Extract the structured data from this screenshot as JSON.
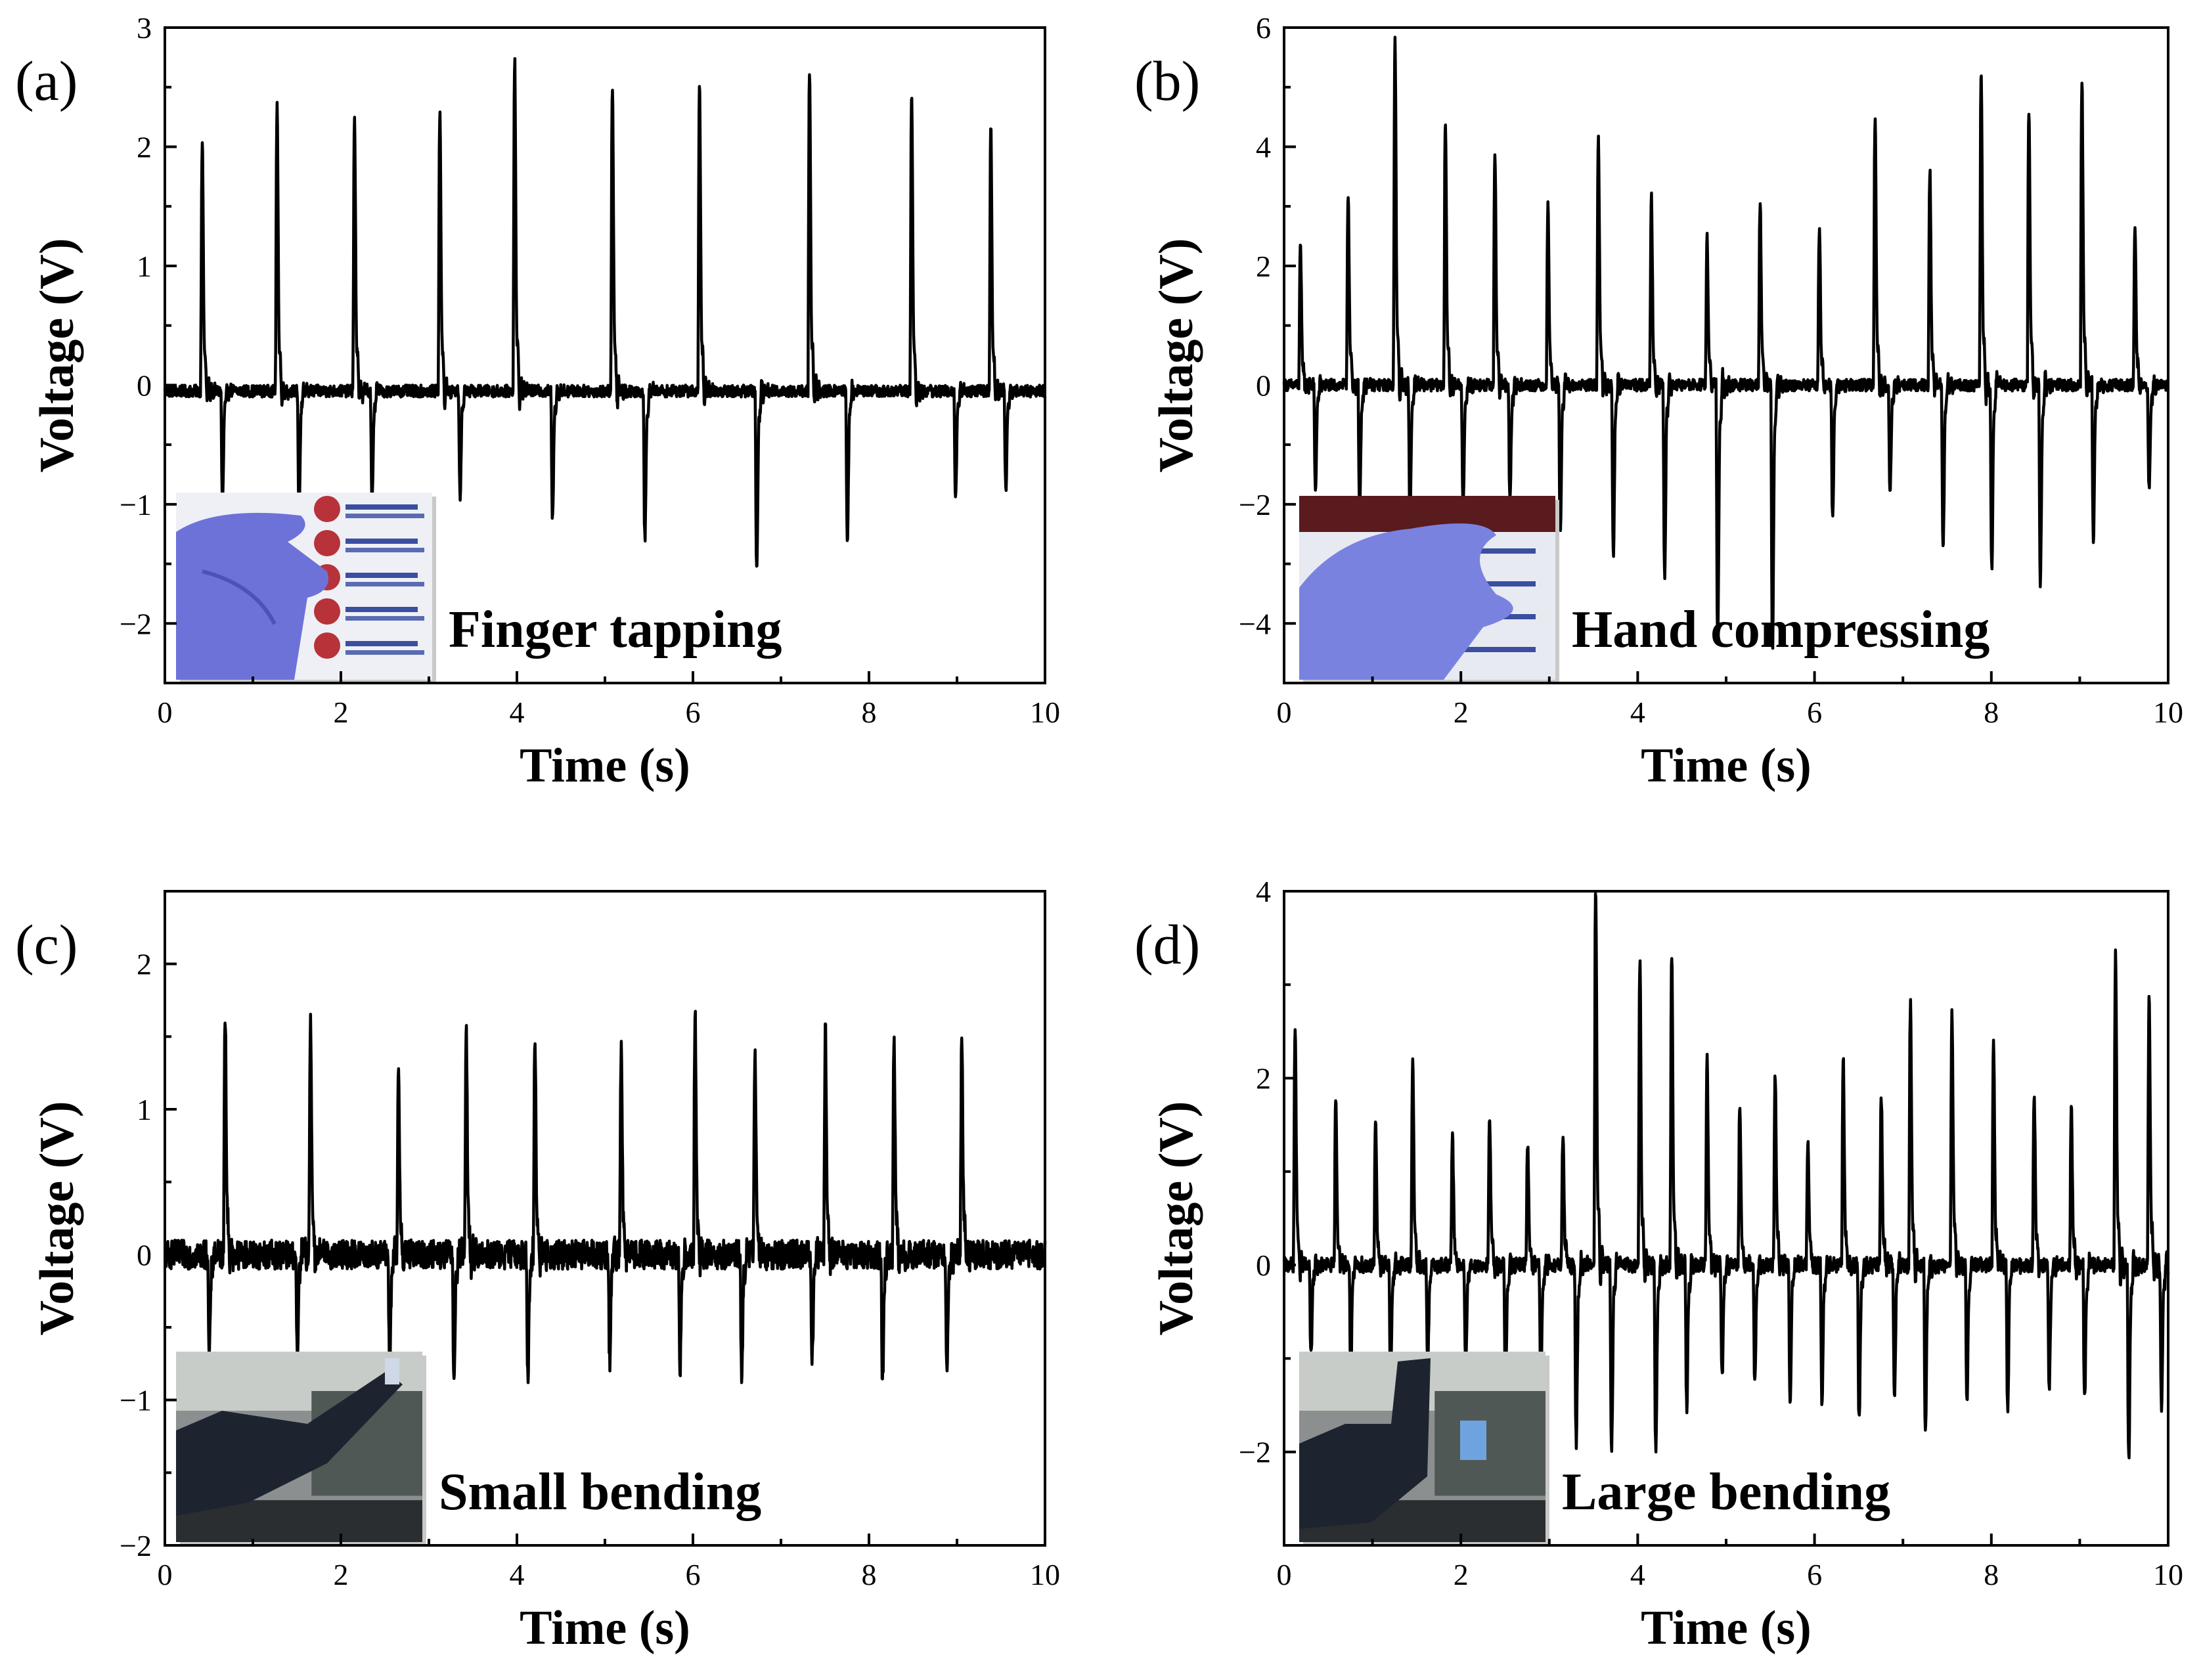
{
  "chart_data": [
    {
      "panel": "(a)",
      "type": "line",
      "xlabel": "Time (s)",
      "ylabel": "Voltage (V)",
      "xlim": [
        0,
        10
      ],
      "ylim": [
        -2.5,
        3
      ],
      "x_ticks": [
        0,
        2,
        4,
        6,
        8,
        10
      ],
      "y_ticks": [
        -2,
        -1,
        0,
        1,
        2,
        3
      ],
      "grid": false,
      "legend": "none",
      "baseline": -0.05,
      "noise": 0.05,
      "annotation": "Finger tapping",
      "inset_photo": "hand-gloved-finger-tapping-photo",
      "peaks": [
        {
          "t": 0.42,
          "v": 1.92
        },
        {
          "t": 0.65,
          "v": -0.85
        },
        {
          "t": 1.27,
          "v": 2.18
        },
        {
          "t": 1.52,
          "v": -0.9
        },
        {
          "t": 2.15,
          "v": 2.08
        },
        {
          "t": 2.35,
          "v": -0.85
        },
        {
          "t": 3.12,
          "v": 2.17
        },
        {
          "t": 3.35,
          "v": -0.8
        },
        {
          "t": 3.97,
          "v": 2.56
        },
        {
          "t": 4.4,
          "v": -0.98
        },
        {
          "t": 5.08,
          "v": 2.32
        },
        {
          "t": 5.45,
          "v": -1.12
        },
        {
          "t": 6.07,
          "v": 2.33
        },
        {
          "t": 6.72,
          "v": -1.38
        },
        {
          "t": 7.32,
          "v": 2.47
        },
        {
          "t": 7.75,
          "v": -1.12
        },
        {
          "t": 8.48,
          "v": 2.25
        },
        {
          "t": 8.98,
          "v": -0.82
        },
        {
          "t": 9.38,
          "v": 2.01
        },
        {
          "t": 9.55,
          "v": -0.75
        }
      ]
    },
    {
      "panel": "(b)",
      "type": "line",
      "xlabel": "Time (s)",
      "ylabel": "Voltage (V)",
      "xlim": [
        0,
        10
      ],
      "ylim": [
        -5,
        6
      ],
      "x_ticks": [
        0,
        2,
        4,
        6,
        8,
        10
      ],
      "y_ticks": [
        -4,
        -2,
        0,
        2,
        4,
        6
      ],
      "grid": false,
      "legend": "none",
      "baseline": 0,
      "noise": 0.1,
      "annotation": "Hand compressing",
      "inset_photo": "hand-compressing-photo",
      "peaks": [
        {
          "t": 0.18,
          "v": 2.1
        },
        {
          "t": 0.35,
          "v": -1.6
        },
        {
          "t": 0.72,
          "v": 2.95
        },
        {
          "t": 0.85,
          "v": -1.9
        },
        {
          "t": 1.25,
          "v": 5.3
        },
        {
          "t": 1.42,
          "v": -2.0
        },
        {
          "t": 1.82,
          "v": 4.0
        },
        {
          "t": 2.02,
          "v": -1.9
        },
        {
          "t": 2.38,
          "v": 3.55
        },
        {
          "t": 2.55,
          "v": -1.8
        },
        {
          "t": 2.98,
          "v": 2.75
        },
        {
          "t": 3.12,
          "v": -2.3
        },
        {
          "t": 3.55,
          "v": 3.75
        },
        {
          "t": 3.72,
          "v": -2.6
        },
        {
          "t": 4.15,
          "v": 2.9
        },
        {
          "t": 4.3,
          "v": -2.9
        },
        {
          "t": 4.78,
          "v": 2.25
        },
        {
          "t": 4.9,
          "v": -4.0
        },
        {
          "t": 5.38,
          "v": 2.8
        },
        {
          "t": 5.52,
          "v": -4.1
        },
        {
          "t": 6.05,
          "v": 2.4
        },
        {
          "t": 6.2,
          "v": -2.0
        },
        {
          "t": 6.68,
          "v": 4.15
        },
        {
          "t": 6.85,
          "v": -1.6
        },
        {
          "t": 7.3,
          "v": 3.3
        },
        {
          "t": 7.45,
          "v": -2.5
        },
        {
          "t": 7.88,
          "v": 4.8
        },
        {
          "t": 8.0,
          "v": -2.8
        },
        {
          "t": 8.42,
          "v": 4.25
        },
        {
          "t": 8.55,
          "v": -3.0
        },
        {
          "t": 9.02,
          "v": 4.7
        },
        {
          "t": 9.15,
          "v": -2.3
        },
        {
          "t": 9.62,
          "v": 2.4
        },
        {
          "t": 9.78,
          "v": -1.6
        }
      ]
    },
    {
      "panel": "(c)",
      "type": "line",
      "xlabel": "Time (s)",
      "ylabel": "Voltage (V)",
      "xlim": [
        0,
        10
      ],
      "ylim": [
        -2,
        2.5
      ],
      "x_ticks": [
        0,
        2,
        4,
        6,
        8,
        10
      ],
      "y_ticks": [
        -2,
        -1,
        0,
        1,
        2
      ],
      "grid": false,
      "legend": "none",
      "baseline": 0,
      "noise": 0.1,
      "annotation": "Small bending",
      "inset_photo": "arm-small-bending-photo",
      "peaks": [
        {
          "t": 0.68,
          "v": 1.55
        },
        {
          "t": 0.5,
          "v": -0.65
        },
        {
          "t": 1.65,
          "v": 1.5
        },
        {
          "t": 1.5,
          "v": -0.65
        },
        {
          "t": 2.65,
          "v": 1.12
        },
        {
          "t": 2.55,
          "v": -0.7
        },
        {
          "t": 3.42,
          "v": 1.4
        },
        {
          "t": 3.28,
          "v": -0.82
        },
        {
          "t": 4.2,
          "v": 1.35
        },
        {
          "t": 4.12,
          "v": -0.8
        },
        {
          "t": 5.18,
          "v": 1.32
        },
        {
          "t": 5.05,
          "v": -0.65
        },
        {
          "t": 6.02,
          "v": 1.5
        },
        {
          "t": 5.85,
          "v": -0.7
        },
        {
          "t": 6.7,
          "v": 1.25
        },
        {
          "t": 6.55,
          "v": -0.78
        },
        {
          "t": 7.5,
          "v": 1.4
        },
        {
          "t": 7.35,
          "v": -0.65
        },
        {
          "t": 8.28,
          "v": 1.38
        },
        {
          "t": 8.15,
          "v": -0.8
        },
        {
          "t": 9.05,
          "v": 1.33
        },
        {
          "t": 8.88,
          "v": -0.75
        }
      ]
    },
    {
      "panel": "(d)",
      "type": "line",
      "xlabel": "Time (s)",
      "ylabel": "Voltage (V)",
      "xlim": [
        0,
        10
      ],
      "ylim": [
        -3,
        4
      ],
      "x_ticks": [
        0,
        2,
        4,
        6,
        8,
        10
      ],
      "y_ticks": [
        -2,
        0,
        2,
        4
      ],
      "grid": false,
      "legend": "none",
      "baseline": 0,
      "noise": 0.08,
      "annotation": "Large bending",
      "inset_photo": "arm-large-bending-photo",
      "peaks": [
        {
          "t": 0.12,
          "v": 2.32
        },
        {
          "t": 0.3,
          "v": -0.9
        },
        {
          "t": 0.58,
          "v": 1.6
        },
        {
          "t": 0.75,
          "v": -1.0
        },
        {
          "t": 1.03,
          "v": 1.35
        },
        {
          "t": 1.2,
          "v": -1.1
        },
        {
          "t": 1.45,
          "v": 2.0
        },
        {
          "t": 1.62,
          "v": -1.0
        },
        {
          "t": 1.9,
          "v": 1.25
        },
        {
          "t": 2.05,
          "v": -1.0
        },
        {
          "t": 2.32,
          "v": 1.42
        },
        {
          "t": 2.5,
          "v": -1.2
        },
        {
          "t": 2.75,
          "v": 1.18
        },
        {
          "t": 2.9,
          "v": -1.2
        },
        {
          "t": 3.15,
          "v": 1.28
        },
        {
          "t": 3.3,
          "v": -1.75
        },
        {
          "t": 3.52,
          "v": 3.68
        },
        {
          "t": 3.7,
          "v": -1.85
        },
        {
          "t": 4.02,
          "v": 2.95
        },
        {
          "t": 4.2,
          "v": -1.85
        },
        {
          "t": 4.38,
          "v": 3.05
        },
        {
          "t": 4.55,
          "v": -1.4
        },
        {
          "t": 4.78,
          "v": 2.0
        },
        {
          "t": 4.95,
          "v": -1.1
        },
        {
          "t": 5.15,
          "v": 1.6
        },
        {
          "t": 5.32,
          "v": -1.1
        },
        {
          "t": 5.55,
          "v": 1.85
        },
        {
          "t": 5.72,
          "v": -1.3
        },
        {
          "t": 5.92,
          "v": 1.18
        },
        {
          "t": 6.08,
          "v": -1.35
        },
        {
          "t": 6.32,
          "v": 2.0
        },
        {
          "t": 6.5,
          "v": -1.55
        },
        {
          "t": 6.75,
          "v": 1.65
        },
        {
          "t": 6.9,
          "v": -1.3
        },
        {
          "t": 7.08,
          "v": 2.57
        },
        {
          "t": 7.25,
          "v": -1.6
        },
        {
          "t": 7.55,
          "v": 2.48
        },
        {
          "t": 7.72,
          "v": -1.3
        },
        {
          "t": 8.02,
          "v": 2.18
        },
        {
          "t": 8.18,
          "v": -1.4
        },
        {
          "t": 8.48,
          "v": 1.65
        },
        {
          "t": 8.65,
          "v": -1.2
        },
        {
          "t": 8.9,
          "v": 1.53
        },
        {
          "t": 9.05,
          "v": -1.35
        },
        {
          "t": 9.4,
          "v": 3.05
        },
        {
          "t": 9.55,
          "v": -1.9
        },
        {
          "t": 9.78,
          "v": 2.65
        },
        {
          "t": 9.92,
          "v": -1.4
        }
      ]
    }
  ]
}
